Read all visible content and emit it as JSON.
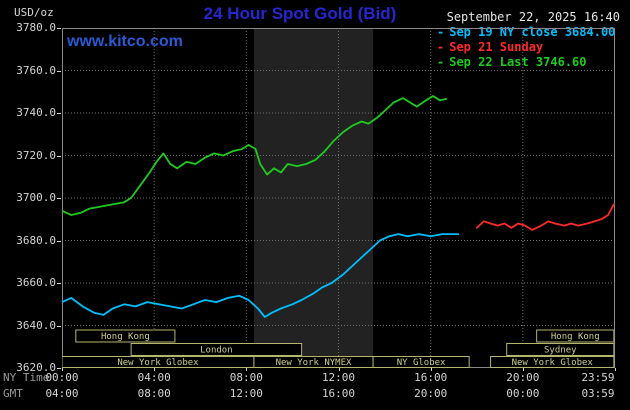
{
  "header": {
    "units_label": "USD/oz",
    "title": "24 Hour Spot Gold (Bid)",
    "watermark": "www.kitco.com",
    "datetime": "September 22, 2025 16:40",
    "legend_marker": "-",
    "legend": [
      {
        "label": "Sep 19 NY close 3684.00",
        "color": "#00bfff"
      },
      {
        "label": "Sep 21 Sunday",
        "color": "#ff2a2a"
      },
      {
        "label": "Sep 22 Last 3746.60",
        "color": "#1ecc1e"
      }
    ]
  },
  "axes": {
    "y_ticks": [
      "3780.0",
      "3760.0",
      "3740.0",
      "3720.0",
      "3700.0",
      "3680.0",
      "3660.0",
      "3640.0",
      "3620.0"
    ],
    "x_tick_hours": [
      0,
      4,
      8,
      12,
      16,
      20,
      23.983
    ],
    "x_rows": [
      {
        "name": "NY Time",
        "times": [
          "00:00",
          "04:00",
          "08:00",
          "12:00",
          "16:00",
          "20:00",
          "23:59"
        ]
      },
      {
        "name": "GMT",
        "times": [
          "04:00",
          "08:00",
          "12:00",
          "16:00",
          "20:00",
          "00:00",
          "03:59"
        ]
      }
    ]
  },
  "colors": {
    "title": "#2626d2",
    "watermark": "#2b5ad4",
    "axis_text": "#d6d6d6",
    "axis_caption": "#9a9a9a",
    "grid": "#6e6e6e",
    "plot_border": "#8a8a8a",
    "session_border": "#b5b56e",
    "session_text": "#cfcf8d",
    "background": "#000000"
  },
  "chart_data": {
    "type": "line",
    "title": "24 Hour Spot Gold (Bid)",
    "ylabel": "USD/oz",
    "xlabel": "NY Time (hours)",
    "ylim": [
      3620,
      3780
    ],
    "xlim": [
      0,
      24
    ],
    "y_grid_step": 20,
    "x_grid_step_hours": 4,
    "grid": true,
    "legend_position": "top-right",
    "highlight_band": {
      "name": "New York NYMEX session",
      "start": 8.33,
      "end": 13.5,
      "color": "#222222"
    },
    "series": [
      {
        "name": "Sep 19 NY close 3684.00",
        "color": "#00bfff",
        "close_value": 3684.0,
        "points": [
          [
            0,
            3651
          ],
          [
            0.4,
            3653
          ],
          [
            0.9,
            3649
          ],
          [
            1.4,
            3646
          ],
          [
            1.8,
            3645
          ],
          [
            2.2,
            3648
          ],
          [
            2.7,
            3650
          ],
          [
            3.2,
            3649
          ],
          [
            3.7,
            3651
          ],
          [
            4.2,
            3650
          ],
          [
            4.7,
            3649
          ],
          [
            5.2,
            3648
          ],
          [
            5.7,
            3650
          ],
          [
            6.2,
            3652
          ],
          [
            6.7,
            3651
          ],
          [
            7.2,
            3653
          ],
          [
            7.7,
            3654
          ],
          [
            8.1,
            3652
          ],
          [
            8.5,
            3648
          ],
          [
            8.8,
            3644
          ],
          [
            9.1,
            3646
          ],
          [
            9.5,
            3648
          ],
          [
            10,
            3650
          ],
          [
            10.4,
            3652
          ],
          [
            10.9,
            3655
          ],
          [
            11.3,
            3658
          ],
          [
            11.7,
            3660
          ],
          [
            12.2,
            3664
          ],
          [
            12.6,
            3668
          ],
          [
            13,
            3672
          ],
          [
            13.4,
            3676
          ],
          [
            13.8,
            3680
          ],
          [
            14.2,
            3682
          ],
          [
            14.6,
            3683
          ],
          [
            15,
            3682
          ],
          [
            15.5,
            3683
          ],
          [
            16,
            3682
          ],
          [
            16.5,
            3683
          ],
          [
            17.2,
            3683
          ]
        ]
      },
      {
        "name": "Sep 21 Sunday",
        "color": "#ff2a2a",
        "points": [
          [
            18,
            3686
          ],
          [
            18.3,
            3689
          ],
          [
            18.6,
            3688
          ],
          [
            18.9,
            3687
          ],
          [
            19.2,
            3688
          ],
          [
            19.5,
            3686
          ],
          [
            19.8,
            3688
          ],
          [
            20.1,
            3687
          ],
          [
            20.4,
            3685
          ],
          [
            20.8,
            3687
          ],
          [
            21.1,
            3689
          ],
          [
            21.4,
            3688
          ],
          [
            21.8,
            3687
          ],
          [
            22.1,
            3688
          ],
          [
            22.4,
            3687
          ],
          [
            22.8,
            3688
          ],
          [
            23.1,
            3689
          ],
          [
            23.4,
            3690
          ],
          [
            23.7,
            3692
          ],
          [
            23.95,
            3697
          ]
        ]
      },
      {
        "name": "Sep 22 Last 3746.60",
        "color": "#1ecc1e",
        "last_value": 3746.6,
        "points": [
          [
            0,
            3694
          ],
          [
            0.4,
            3692
          ],
          [
            0.8,
            3693
          ],
          [
            1.2,
            3695
          ],
          [
            1.7,
            3696
          ],
          [
            2.2,
            3697
          ],
          [
            2.7,
            3698
          ],
          [
            3,
            3700
          ],
          [
            3.4,
            3706
          ],
          [
            3.8,
            3712
          ],
          [
            4.1,
            3717
          ],
          [
            4.4,
            3721
          ],
          [
            4.7,
            3716
          ],
          [
            5,
            3714
          ],
          [
            5.4,
            3717
          ],
          [
            5.8,
            3716
          ],
          [
            6.2,
            3719
          ],
          [
            6.6,
            3721
          ],
          [
            7,
            3720
          ],
          [
            7.4,
            3722
          ],
          [
            7.8,
            3723
          ],
          [
            8.1,
            3725
          ],
          [
            8.4,
            3723
          ],
          [
            8.6,
            3716
          ],
          [
            8.9,
            3711
          ],
          [
            9.2,
            3714
          ],
          [
            9.5,
            3712
          ],
          [
            9.8,
            3716
          ],
          [
            10.2,
            3715
          ],
          [
            10.6,
            3716
          ],
          [
            11,
            3718
          ],
          [
            11.4,
            3722
          ],
          [
            11.8,
            3727
          ],
          [
            12.2,
            3731
          ],
          [
            12.6,
            3734
          ],
          [
            13,
            3736
          ],
          [
            13.3,
            3735
          ],
          [
            13.7,
            3738
          ],
          [
            14,
            3741
          ],
          [
            14.4,
            3745
          ],
          [
            14.8,
            3747
          ],
          [
            15.1,
            3745
          ],
          [
            15.4,
            3743
          ],
          [
            15.8,
            3746
          ],
          [
            16.1,
            3748
          ],
          [
            16.4,
            3746
          ],
          [
            16.67,
            3746.6
          ]
        ]
      }
    ],
    "sessions": [
      {
        "label": "Hong Kong",
        "row": 0,
        "start": 0.6,
        "end": 4.9
      },
      {
        "label": "Hong Kong",
        "row": 0,
        "start": 20.6,
        "end": 23.95
      },
      {
        "label": "London",
        "row": 1,
        "start": 3.0,
        "end": 10.4
      },
      {
        "label": "Sydney",
        "row": 1,
        "start": 19.3,
        "end": 23.95
      },
      {
        "label": "New York Globex",
        "row": 2,
        "start": 0,
        "end": 8.33
      },
      {
        "label": "New York NYMEX",
        "row": 2,
        "start": 8.33,
        "end": 13.5
      },
      {
        "label": "NY Globex",
        "row": 2,
        "start": 13.5,
        "end": 17.67
      },
      {
        "label": "New York Globex",
        "row": 2,
        "start": 18.6,
        "end": 23.95
      }
    ]
  }
}
